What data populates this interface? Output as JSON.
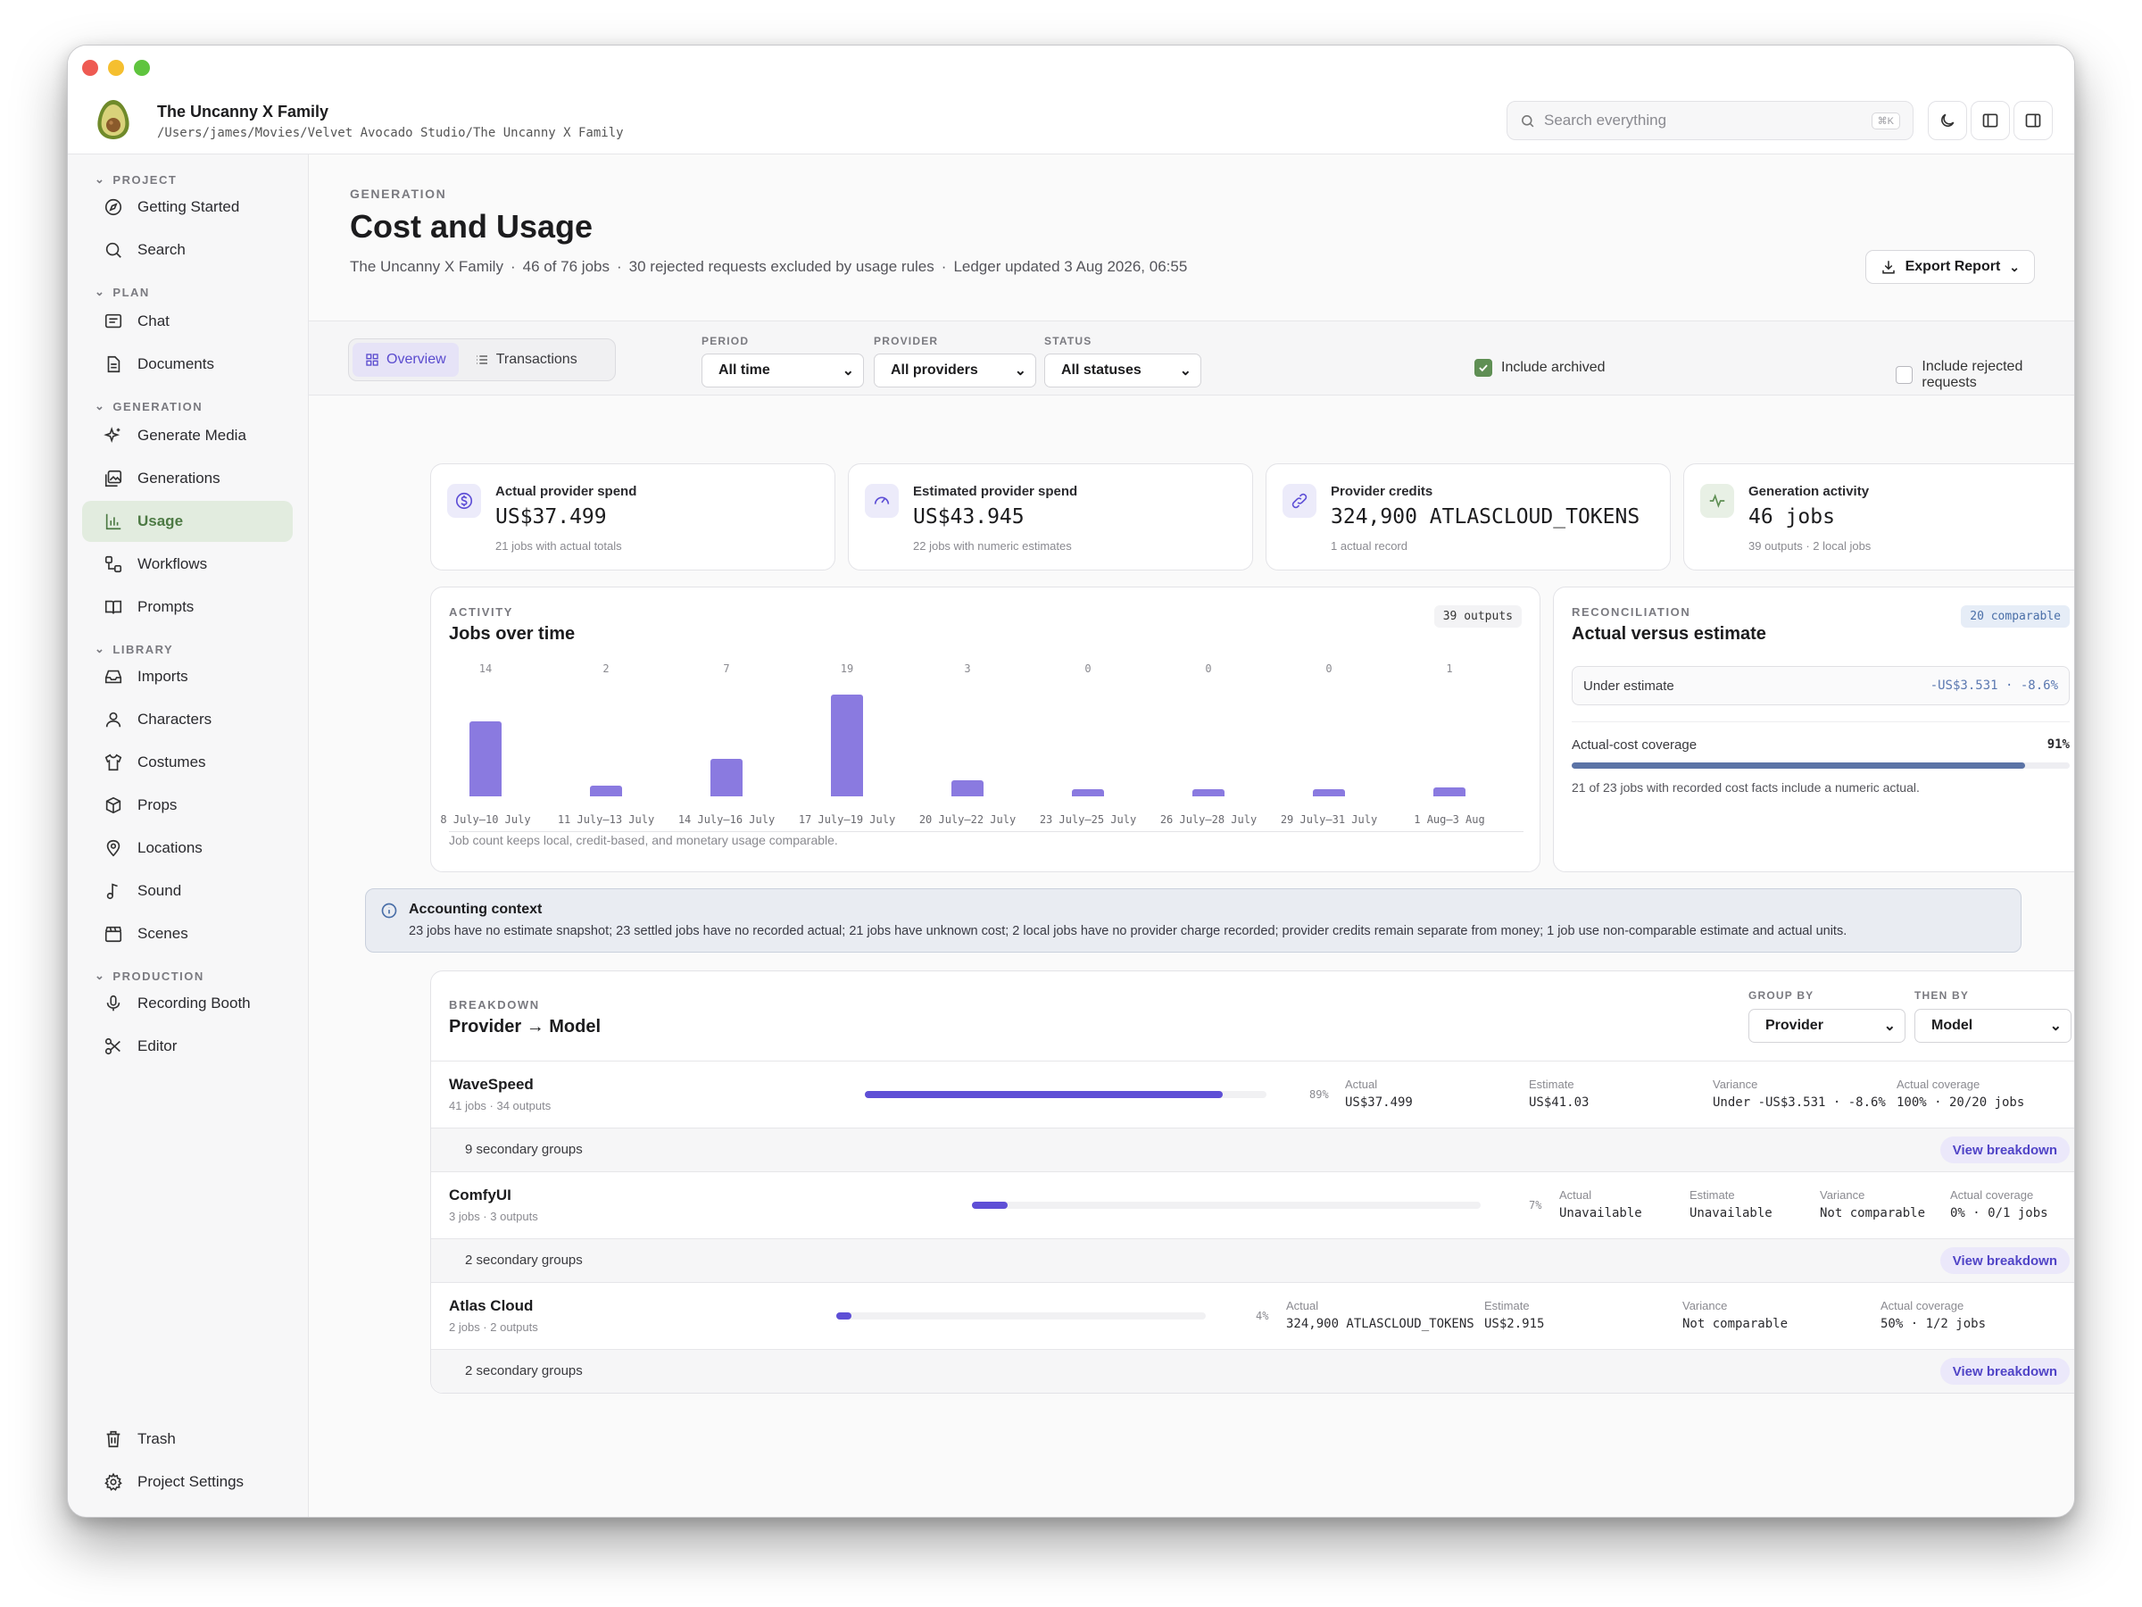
{
  "app": {
    "title": "The Uncanny X Family",
    "path": "/Users/james/Movies/Velvet Avocado Studio/The Uncanny X Family"
  },
  "search": {
    "placeholder": "Search everything",
    "shortcut": "⌘K"
  },
  "sidebar": {
    "sections": [
      {
        "label": "PROJECT",
        "items": [
          "Getting Started",
          "Search"
        ]
      },
      {
        "label": "PLAN",
        "items": [
          "Chat",
          "Documents"
        ]
      },
      {
        "label": "GENERATION",
        "items": [
          "Generate Media",
          "Generations",
          "Usage",
          "Workflows",
          "Prompts"
        ]
      },
      {
        "label": "LIBRARY",
        "items": [
          "Imports",
          "Characters",
          "Costumes",
          "Props",
          "Locations",
          "Sound",
          "Scenes"
        ]
      },
      {
        "label": "PRODUCTION",
        "items": [
          "Recording Booth",
          "Editor"
        ]
      }
    ],
    "active_item": "Usage",
    "footer": [
      "Trash",
      "Project Settings"
    ]
  },
  "page": {
    "eyebrow": "GENERATION",
    "title": "Cost and Usage",
    "subtitle_parts": [
      "The Uncanny X Family",
      "46 of 76 jobs",
      "30 rejected requests excluded by usage rules",
      "Ledger updated 3 Aug 2026, 06:55"
    ],
    "export_label": "Export Report"
  },
  "filters": {
    "tabs": [
      "Overview",
      "Transactions"
    ],
    "active_tab": "Overview",
    "period": {
      "label": "PERIOD",
      "value": "All time"
    },
    "provider": {
      "label": "PROVIDER",
      "value": "All providers"
    },
    "status": {
      "label": "STATUS",
      "value": "All statuses"
    },
    "include_archived": {
      "label": "Include archived",
      "checked": true
    },
    "include_rejected": {
      "label": "Include rejected requests",
      "checked": false
    }
  },
  "kpis": [
    {
      "label": "Actual provider spend",
      "value": "US$37.499",
      "sub": "21 jobs with actual totals",
      "icon": "dollar-icon",
      "color": "#5e4fd6"
    },
    {
      "label": "Estimated provider spend",
      "value": "US$43.945",
      "sub": "22 jobs with numeric estimates",
      "icon": "gauge-icon",
      "color": "#5e4fd6"
    },
    {
      "label": "Provider credits",
      "value": "324,900 ATLASCLOUD_TOKENS",
      "sub": "1 actual record",
      "icon": "link-icon",
      "color": "#5e4fd6"
    },
    {
      "label": "Generation activity",
      "value": "46 jobs",
      "sub": "39 outputs · 2 local jobs",
      "icon": "activity-icon",
      "color": "#5f8f54"
    }
  ],
  "activity": {
    "eyebrow": "ACTIVITY",
    "title": "Jobs over time",
    "badge": "39 outputs",
    "footnote": "Job count keeps local, credit-based, and monetary usage comparable."
  },
  "chart_data": {
    "type": "bar",
    "categories": [
      "8 July–10 July",
      "11 July–13 July",
      "14 July–16 July",
      "17 July–19 July",
      "20 July–22 July",
      "23 July–25 July",
      "26 July–28 July",
      "29 July–31 July",
      "1 Aug–3 Aug"
    ],
    "values": [
      14,
      2,
      7,
      19,
      3,
      0,
      0,
      0,
      1
    ],
    "title": "Jobs over time",
    "ylim": [
      0,
      19
    ],
    "color": "#8a7ae0"
  },
  "reconciliation": {
    "eyebrow": "RECONCILIATION",
    "title": "Actual versus estimate",
    "badge": "20 comparable",
    "under_label": "Under estimate",
    "under_value": "-US$3.531 · -8.6%",
    "coverage_label": "Actual-cost coverage",
    "coverage_pct": "91%",
    "coverage_fraction": 0.91,
    "coverage_note": "21 of 23 jobs with recorded cost facts include a numeric actual."
  },
  "context": {
    "title": "Accounting context",
    "text": "23 jobs have no estimate snapshot; 23 settled jobs have no recorded actual; 21 jobs have unknown cost; 2 local jobs have no provider charge recorded; provider credits remain separate from money; 1 job use non-comparable estimate and actual units."
  },
  "breakdown": {
    "eyebrow": "BREAKDOWN",
    "title": "Provider → Model",
    "group_by": {
      "label": "GROUP BY",
      "value": "Provider"
    },
    "then_by": {
      "label": "THEN BY",
      "value": "Model"
    },
    "view_label": "View breakdown",
    "rows": [
      {
        "name": "WaveSpeed",
        "meta": "41 jobs · 34 outputs",
        "pct": "89%",
        "share": 0.89,
        "actual_l": "Actual",
        "actual": "US$37.499",
        "estimate_l": "Estimate",
        "estimate": "US$41.03",
        "variance_l": "Variance",
        "variance": "Under -US$3.531 · -8.6%",
        "coverage_l": "Actual coverage",
        "coverage": "100% · 20/20 jobs",
        "secondary": "9 secondary groups"
      },
      {
        "name": "ComfyUI",
        "meta": "3 jobs · 3 outputs",
        "pct": "7%",
        "share": 0.07,
        "actual_l": "Actual",
        "actual": "Unavailable",
        "estimate_l": "Estimate",
        "estimate": "Unavailable",
        "variance_l": "Variance",
        "variance": "Not comparable",
        "coverage_l": "Actual coverage",
        "coverage": "0% · 0/1 jobs",
        "secondary": "2 secondary groups"
      },
      {
        "name": "Atlas Cloud",
        "meta": "2 jobs · 2 outputs",
        "pct": "4%",
        "share": 0.04,
        "actual_l": "Actual",
        "actual": "324,900 ATLASCLOUD_TOKENS",
        "estimate_l": "Estimate",
        "estimate": "US$2.915",
        "variance_l": "Variance",
        "variance": "Not comparable",
        "coverage_l": "Actual coverage",
        "coverage": "50% · 1/2 jobs",
        "secondary": "2 secondary groups"
      }
    ]
  }
}
